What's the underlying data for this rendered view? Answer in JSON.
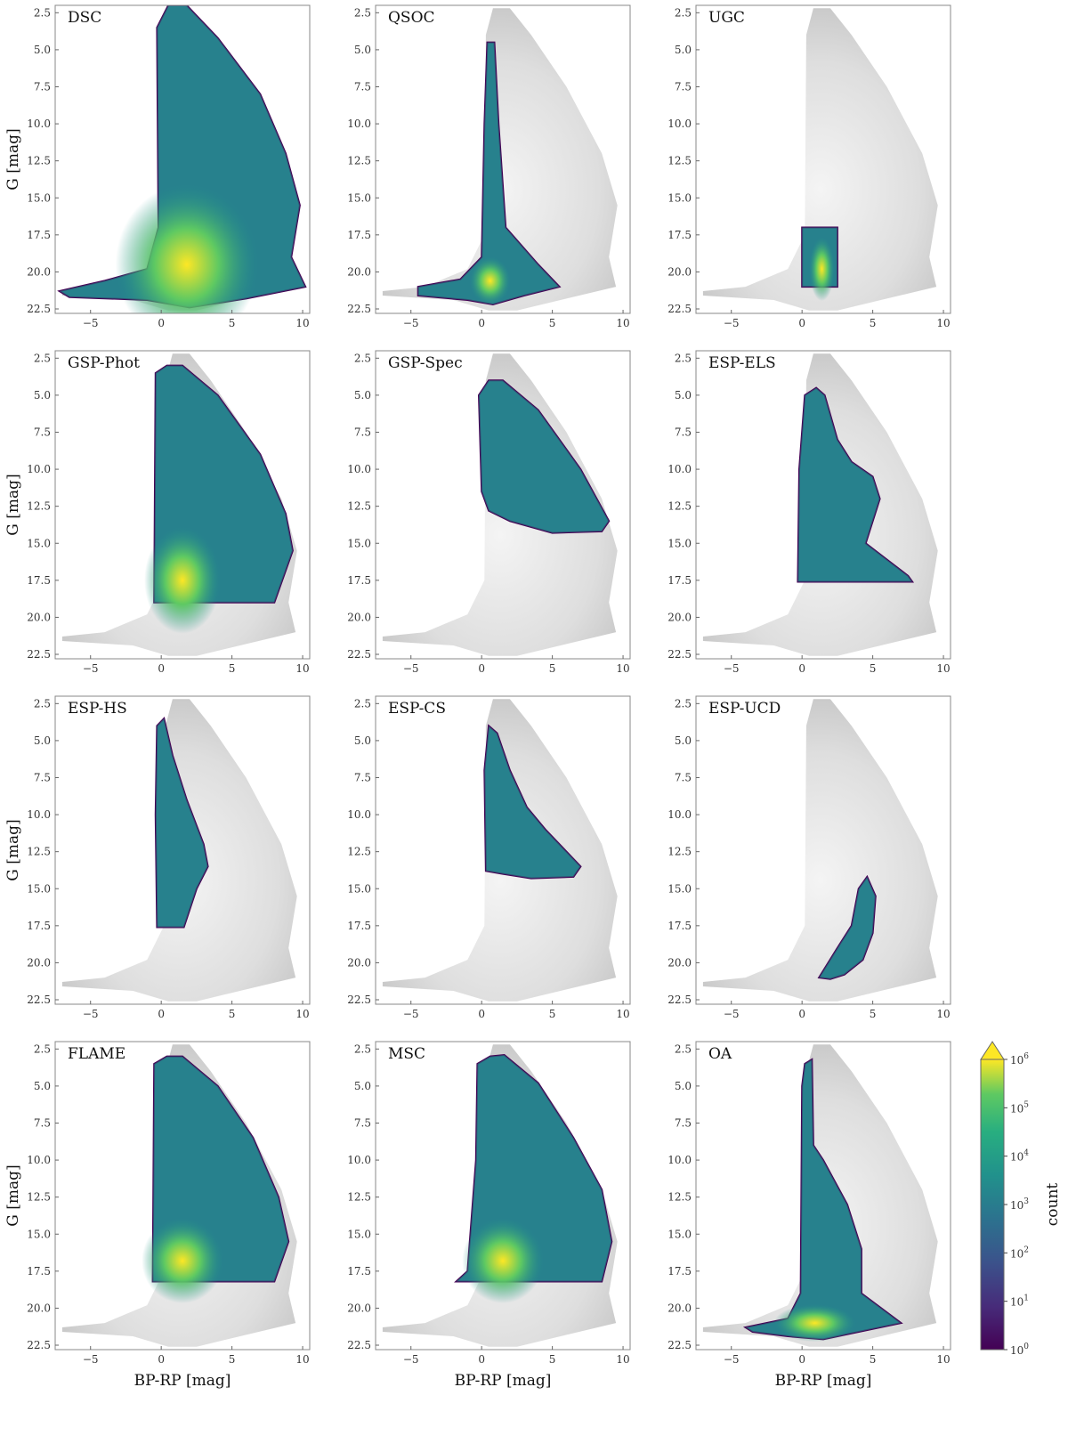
{
  "chart_data": {
    "type": "heatmap",
    "description_layout": "4 x 3 grid of colour-magnitude density panels",
    "xlabel": "BP-RP [mag]",
    "ylabel": "G [mag]",
    "xlim": [
      -7.5,
      10.5
    ],
    "ylim": [
      22.8,
      2.0
    ],
    "xticks": [
      -5,
      0,
      5,
      10
    ],
    "yticks": [
      2.5,
      5.0,
      7.5,
      10.0,
      12.5,
      15.0,
      17.5,
      20.0,
      22.5
    ],
    "xtick_labels": [
      "−5",
      "0",
      "5",
      "10"
    ],
    "ytick_labels": [
      "2.5",
      "5.0",
      "7.5",
      "10.0",
      "12.5",
      "15.0",
      "17.5",
      "20.0",
      "22.5"
    ],
    "background": "grey density of full sample",
    "colorbar": {
      "label": "count",
      "scale": "log",
      "ticks": [
        0,
        1,
        2,
        3,
        4,
        5,
        6
      ],
      "tick_labels": [
        "10^0",
        "10^1",
        "10^2",
        "10^3",
        "10^4",
        "10^5",
        "10^6"
      ],
      "colormap": [
        "#440154",
        "#3b528b",
        "#21918c",
        "#5ec962",
        "#fde725"
      ],
      "extend": "max"
    },
    "panels": [
      {
        "title": "DSC",
        "g_cut": null
      },
      {
        "title": "QSOC",
        "g_cut": null
      },
      {
        "title": "UGC",
        "g_cut": [
          17.0,
          21.0
        ],
        "bprp_range": [
          0.0,
          2.5
        ]
      },
      {
        "title": "GSP-Phot",
        "g_cut": 19.0
      },
      {
        "title": "GSP-Spec",
        "g_cut": 14.5
      },
      {
        "title": "ESP-ELS",
        "g_cut": 17.6
      },
      {
        "title": "ESP-HS",
        "g_cut": 17.6
      },
      {
        "title": "ESP-CS",
        "g_cut": 14.5
      },
      {
        "title": "ESP-UCD",
        "g_cut": null
      },
      {
        "title": "FLAME",
        "g_cut": 18.2
      },
      {
        "title": "MSC",
        "g_cut": 18.2
      },
      {
        "title": "OA",
        "g_cut": null
      }
    ]
  },
  "colors": {
    "frame": "#888888",
    "background_density": "#c8c8c8",
    "viridis_low": "#440154",
    "viridis_high": "#fde725"
  }
}
